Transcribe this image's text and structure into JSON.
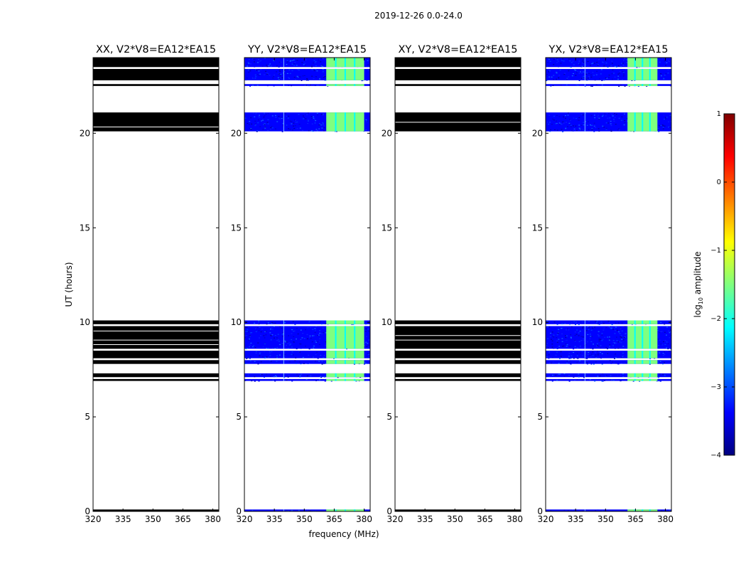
{
  "chart_data": {
    "type": "heatmap",
    "suptitle": "2019-12-26 0.0-24.0",
    "xlabel": "frequency (MHz)",
    "ylabel": "UT (hours)",
    "xlim": [
      320,
      383
    ],
    "ylim": [
      0,
      24
    ],
    "xticks": [
      320,
      335,
      350,
      365,
      380
    ],
    "yticks": [
      0,
      5,
      10,
      15,
      20
    ],
    "colorbar": {
      "label_prefix": "log",
      "label_sub": "10",
      "label_suffix": " amplitude",
      "range": [
        -4,
        1
      ],
      "ticks": [
        "1",
        "0",
        "−1",
        "−2",
        "−3",
        "−4"
      ],
      "tick_values": [
        1,
        0,
        -1,
        -2,
        -3,
        -4
      ],
      "colormap": [
        "#00007f",
        "#0000ff",
        "#007fff",
        "#00ffff",
        "#7fff7f",
        "#ffff00",
        "#ff7f00",
        "#ff0000",
        "#7f0000"
      ]
    },
    "data_blocks": [
      {
        "t_start": 0.0,
        "t_end": 0.1
      },
      {
        "t_start": 6.9,
        "t_end": 7.0
      },
      {
        "t_start": 7.1,
        "t_end": 7.3
      },
      {
        "t_start": 7.8,
        "t_end": 8.0
      },
      {
        "t_start": 8.1,
        "t_end": 8.5
      },
      {
        "t_start": 8.6,
        "t_end": 9.8
      },
      {
        "t_start": 9.9,
        "t_end": 10.1
      },
      {
        "t_start": 20.1,
        "t_end": 21.1
      },
      {
        "t_start": 22.5,
        "t_end": 22.6
      },
      {
        "t_start": 22.8,
        "t_end": 23.4
      },
      {
        "t_start": 23.5,
        "t_end": 24.0
      }
    ],
    "panels": [
      {
        "title": "XX, V2*V8=EA12*EA15",
        "pol": "XX",
        "masked": true
      },
      {
        "title": "YY, V2*V8=EA12*EA15",
        "pol": "YY",
        "masked": false,
        "rfi_band": [
          361,
          380
        ],
        "rfi_level": -1.3
      },
      {
        "title": "XY, V2*V8=EA12*EA15",
        "pol": "XY",
        "masked": true
      },
      {
        "title": "YX, V2*V8=EA12*EA15",
        "pol": "YX",
        "masked": false,
        "rfi_band": [
          361,
          376
        ],
        "rfi_level": -1.6
      }
    ]
  }
}
